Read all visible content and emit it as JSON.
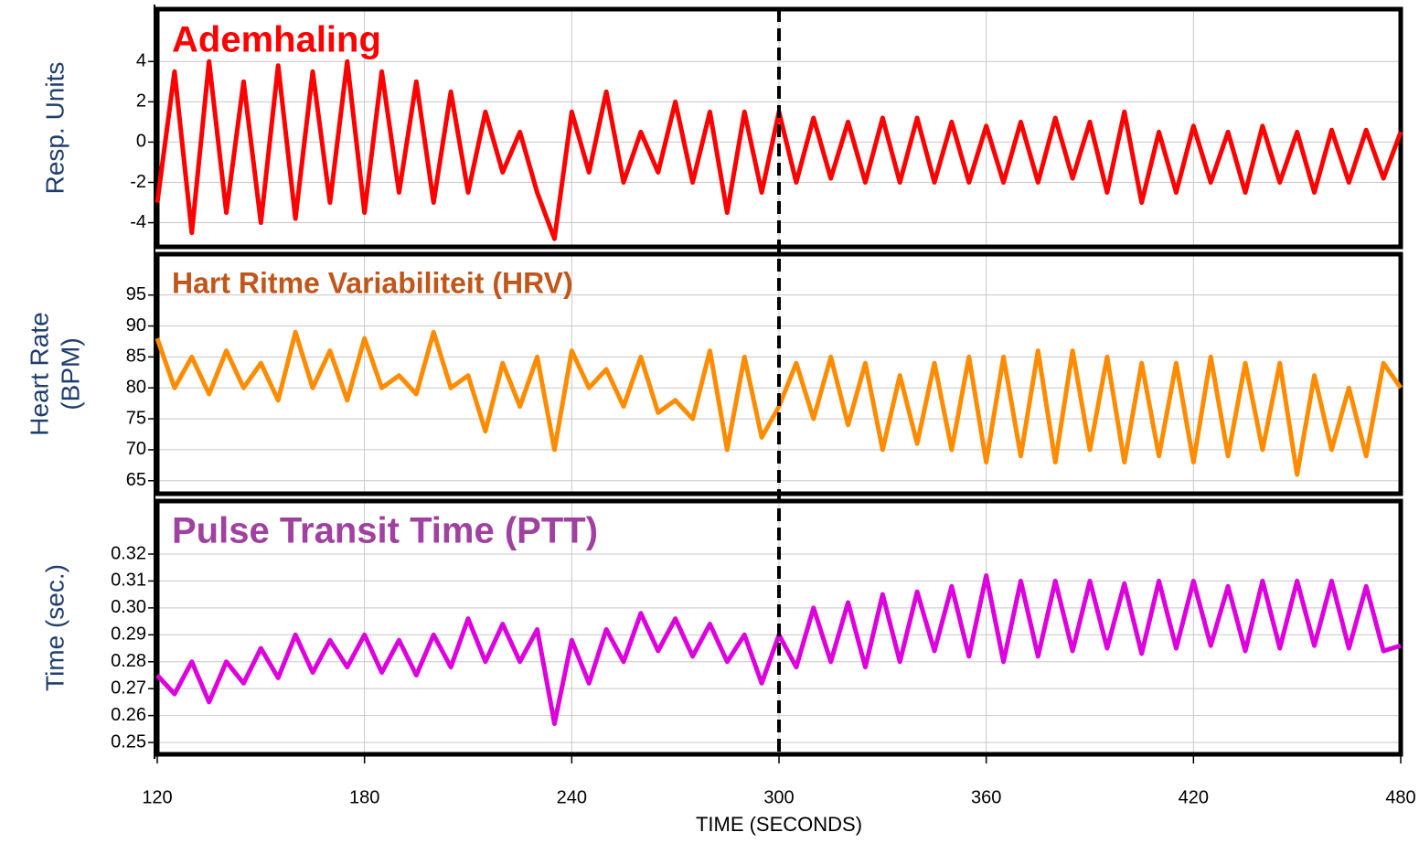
{
  "chart_data": [
    {
      "type": "line",
      "title": "Ademhaling",
      "ylabel": [
        "Resp. Units"
      ],
      "xlim": [
        120,
        480
      ],
      "ylim": [
        -5.2,
        6.6
      ],
      "yticks": [
        -4,
        -2,
        0,
        2,
        4
      ],
      "grid": true,
      "title_color": "#ff0000",
      "x": [
        120,
        125,
        130,
        135,
        140,
        145,
        150,
        155,
        160,
        165,
        170,
        175,
        180,
        185,
        190,
        195,
        200,
        205,
        210,
        215,
        220,
        225,
        230,
        235,
        240,
        245,
        250,
        255,
        260,
        265,
        270,
        275,
        280,
        285,
        290,
        295,
        300,
        305,
        310,
        315,
        320,
        325,
        330,
        335,
        340,
        345,
        350,
        355,
        360,
        365,
        370,
        375,
        380,
        385,
        390,
        395,
        400,
        405,
        410,
        415,
        420,
        425,
        430,
        435,
        440,
        445,
        450,
        455,
        460,
        465,
        470,
        475,
        480
      ],
      "series": [
        {
          "color": "#ff0000",
          "values": [
            -3,
            3.5,
            -4.5,
            4,
            -3.5,
            3,
            -4,
            3.8,
            -3.8,
            3.5,
            -3,
            4,
            -3.5,
            3.5,
            -2.5,
            3,
            -3,
            2.5,
            -2.5,
            1.5,
            -1.5,
            0.5,
            -2.5,
            -4.8,
            1.5,
            -1.5,
            2.5,
            -2,
            0.5,
            -1.5,
            2,
            -2,
            1.5,
            -3.5,
            1.5,
            -2.5,
            1.5,
            -2,
            1.2,
            -1.8,
            1,
            -2,
            1.2,
            -2,
            1.2,
            -2,
            1,
            -2,
            0.8,
            -2,
            1,
            -2,
            1.2,
            -1.8,
            1,
            -2.5,
            1.5,
            -3,
            0.5,
            -2.5,
            0.8,
            -2,
            0.5,
            -2.5,
            0.8,
            -2,
            0.5,
            -2.5,
            0.6,
            -2,
            0.6,
            -1.8,
            0.5
          ]
        }
      ]
    },
    {
      "type": "line",
      "title": "Hart Ritme Variabiliteit (HRV)",
      "ylabel": [
        "Heart Rate",
        "(BPM)"
      ],
      "xlim": [
        120,
        480
      ],
      "ylim": [
        62.9,
        101.6
      ],
      "yticks": [
        65,
        70,
        75,
        80,
        85,
        90,
        95
      ],
      "grid": true,
      "title_color": "#c0561a",
      "x": [
        120,
        125,
        130,
        135,
        140,
        145,
        150,
        155,
        160,
        165,
        170,
        175,
        180,
        185,
        190,
        195,
        200,
        205,
        210,
        215,
        220,
        225,
        230,
        235,
        240,
        245,
        250,
        255,
        260,
        265,
        270,
        275,
        280,
        285,
        290,
        295,
        300,
        305,
        310,
        315,
        320,
        325,
        330,
        335,
        340,
        345,
        350,
        355,
        360,
        365,
        370,
        375,
        380,
        385,
        390,
        395,
        400,
        405,
        410,
        415,
        420,
        425,
        430,
        435,
        440,
        445,
        450,
        455,
        460,
        465,
        470,
        475,
        480
      ],
      "series": [
        {
          "color": "#ff8c00",
          "values": [
            88,
            80,
            85,
            79,
            86,
            80,
            84,
            78,
            89,
            80,
            86,
            78,
            88,
            80,
            82,
            79,
            89,
            80,
            82,
            73,
            84,
            77,
            85,
            70,
            86,
            80,
            83,
            77,
            85,
            76,
            78,
            75,
            86,
            70,
            85,
            72,
            77,
            84,
            75,
            85,
            74,
            84,
            70,
            82,
            71,
            84,
            70,
            85,
            68,
            85,
            69,
            86,
            68,
            86,
            70,
            85,
            68,
            84,
            69,
            84,
            68,
            85,
            69,
            84,
            70,
            84,
            66,
            82,
            70,
            80,
            69,
            84,
            80
          ]
        }
      ]
    },
    {
      "type": "line",
      "title": "Pulse Transit Time (PTT)",
      "ylabel": [
        "Time (sec.)"
      ],
      "xlabel": "TIME (SECONDS)",
      "xlim": [
        120,
        480
      ],
      "ylim": [
        0.2456,
        0.3397
      ],
      "xticks": [
        120,
        180,
        240,
        300,
        360,
        420,
        480
      ],
      "yticks": [
        0.25,
        0.26,
        0.27,
        0.28,
        0.29,
        {
          "value": 0.3,
          "label": "0.30"
        },
        0.31,
        0.32
      ],
      "grid": true,
      "title_color": "#a040a0",
      "x": [
        120,
        125,
        130,
        135,
        140,
        145,
        150,
        155,
        160,
        165,
        170,
        175,
        180,
        185,
        190,
        195,
        200,
        205,
        210,
        215,
        220,
        225,
        230,
        235,
        240,
        245,
        250,
        255,
        260,
        265,
        270,
        275,
        280,
        285,
        290,
        295,
        300,
        305,
        310,
        315,
        320,
        325,
        330,
        335,
        340,
        345,
        350,
        355,
        360,
        365,
        370,
        375,
        380,
        385,
        390,
        395,
        400,
        405,
        410,
        415,
        420,
        425,
        430,
        435,
        440,
        445,
        450,
        455,
        460,
        465,
        470,
        475,
        480
      ],
      "series": [
        {
          "color": "#dd00dd",
          "values": [
            0.275,
            0.268,
            0.28,
            0.265,
            0.28,
            0.272,
            0.285,
            0.274,
            0.29,
            0.276,
            0.288,
            0.278,
            0.29,
            0.276,
            0.288,
            0.275,
            0.29,
            0.278,
            0.296,
            0.28,
            0.294,
            0.28,
            0.292,
            0.257,
            0.288,
            0.272,
            0.292,
            0.28,
            0.298,
            0.284,
            0.296,
            0.282,
            0.294,
            0.28,
            0.29,
            0.272,
            0.29,
            0.278,
            0.3,
            0.28,
            0.302,
            0.278,
            0.305,
            0.28,
            0.306,
            0.284,
            0.308,
            0.282,
            0.312,
            0.28,
            0.31,
            0.282,
            0.31,
            0.284,
            0.31,
            0.285,
            0.309,
            0.283,
            0.31,
            0.285,
            0.31,
            0.286,
            0.308,
            0.284,
            0.31,
            0.285,
            0.31,
            0.286,
            0.31,
            0.285,
            0.308,
            0.284,
            0.286
          ]
        }
      ],
      "vline": 300
    }
  ]
}
